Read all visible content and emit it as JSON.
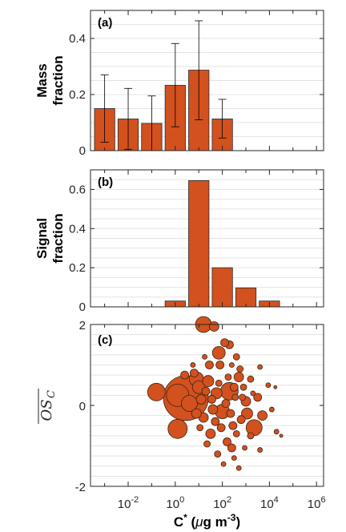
{
  "colors": {
    "bar_fill": "#d2511f",
    "bubble_fill": "#d2511f",
    "grid": "#e3e3e3"
  },
  "chart_data": [
    {
      "type": "bar",
      "panel_label": "(a)",
      "ylabel_lines": [
        "Mass",
        "fraction"
      ],
      "x_log10": [
        -3,
        -2,
        -1,
        0,
        1,
        2,
        3,
        4,
        5,
        6
      ],
      "values": [
        0.15,
        0.113,
        0.097,
        0.233,
        0.287,
        0.113,
        0,
        0,
        0,
        0
      ],
      "err_low": [
        0.03,
        0.005,
        0.0,
        0.085,
        0.11,
        0.045,
        0,
        0,
        0,
        0
      ],
      "err_high": [
        0.27,
        0.222,
        0.195,
        0.382,
        0.463,
        0.183,
        0,
        0,
        0,
        0
      ],
      "ylim": [
        0,
        0.5
      ],
      "yticks": [
        "0",
        "0.2",
        "0.4"
      ],
      "grid": true
    },
    {
      "type": "bar",
      "panel_label": "(b)",
      "ylabel_lines": [
        "Signal",
        "fraction"
      ],
      "x_log10": [
        -3,
        -2,
        -1,
        0,
        1,
        2,
        3,
        4,
        5,
        6
      ],
      "values": [
        0,
        0,
        0,
        0.03,
        0.645,
        0.2,
        0.097,
        0.03,
        0,
        0
      ],
      "ylim": [
        0,
        0.7
      ],
      "yticks": [
        "0",
        "0.2",
        "0.4",
        "0.6"
      ],
      "grid": true
    },
    {
      "type": "scatter",
      "panel_label": "(c)",
      "ylabel": "OSc",
      "ylim": [
        -2,
        2
      ],
      "yticks": [
        "2",
        "0",
        "-2"
      ],
      "grid": true,
      "xlim_log10": [
        -3.6,
        6.3
      ],
      "xticks": [
        {
          "base": "10",
          "exp": "-2"
        },
        {
          "base": "10",
          "exp": "0"
        },
        {
          "base": "10",
          "exp": "2"
        },
        {
          "base": "10",
          "exp": "4"
        },
        {
          "base": "10",
          "exp": "6"
        }
      ],
      "xlabel": {
        "main": "C",
        "sup": "*",
        "units_open": " (",
        "mu": "μ",
        "units_mid": "g m",
        "units_sup": "-3",
        "units_close": ")"
      },
      "points": [
        {
          "logx": 0.45,
          "y": 0.18,
          "s": 28
        },
        {
          "logx": 0.1,
          "y": 0.25,
          "s": 14
        },
        {
          "logx": -0.8,
          "y": 0.33,
          "s": 11
        },
        {
          "logx": 0.1,
          "y": -0.58,
          "s": 12
        },
        {
          "logx": 0.6,
          "y": 0.05,
          "s": 10
        },
        {
          "logx": 0.9,
          "y": 0.65,
          "s": 9
        },
        {
          "logx": 1.2,
          "y": 2.0,
          "s": 10
        },
        {
          "logx": 1.65,
          "y": 1.95,
          "s": 6
        },
        {
          "logx": 2.3,
          "y": 0.35,
          "s": 11
        },
        {
          "logx": 1.85,
          "y": 1.3,
          "s": 8
        },
        {
          "logx": 3.35,
          "y": -0.55,
          "s": 10
        },
        {
          "logx": 2.7,
          "y": 0.7,
          "s": 6
        },
        {
          "logx": 1.4,
          "y": 0.6,
          "s": 7
        },
        {
          "logx": 1.0,
          "y": 0.45,
          "s": 8
        },
        {
          "logx": 2.0,
          "y": -0.15,
          "s": 9
        },
        {
          "logx": 1.75,
          "y": 0.3,
          "s": 7
        },
        {
          "logx": 3.0,
          "y": 0.1,
          "s": 6
        },
        {
          "logx": 3.05,
          "y": -0.2,
          "s": 7
        },
        {
          "logx": 1.2,
          "y": -0.3,
          "s": 6
        },
        {
          "logx": 0.8,
          "y": 0.8,
          "s": 5
        },
        {
          "logx": 1.45,
          "y": 1.0,
          "s": 5
        },
        {
          "logx": 1.9,
          "y": 1.0,
          "s": 5
        },
        {
          "logx": 2.3,
          "y": 1.5,
          "s": 5
        },
        {
          "logx": 2.1,
          "y": 1.55,
          "s": 5
        },
        {
          "logx": 0.4,
          "y": 0.75,
          "s": 5
        },
        {
          "logx": 2.6,
          "y": 1.2,
          "s": 4
        },
        {
          "logx": 2.75,
          "y": 0.9,
          "s": 4
        },
        {
          "logx": 3.5,
          "y": 0.2,
          "s": 5
        },
        {
          "logx": 3.7,
          "y": -0.25,
          "s": 6
        },
        {
          "logx": 2.2,
          "y": -0.9,
          "s": 5
        },
        {
          "logx": 2.4,
          "y": -1.05,
          "s": 5
        },
        {
          "logx": 1.8,
          "y": -1.2,
          "s": 4
        },
        {
          "logx": 1.5,
          "y": -0.7,
          "s": 6
        },
        {
          "logx": 0.9,
          "y": -0.2,
          "s": 6
        },
        {
          "logx": 1.1,
          "y": 0.15,
          "s": 6
        },
        {
          "logx": 1.6,
          "y": -0.1,
          "s": 6
        },
        {
          "logx": 2.5,
          "y": 0.45,
          "s": 5
        },
        {
          "logx": 2.9,
          "y": 0.45,
          "s": 4
        },
        {
          "logx": 3.2,
          "y": 0.65,
          "s": 4
        },
        {
          "logx": 2.8,
          "y": -0.35,
          "s": 5
        },
        {
          "logx": 2.45,
          "y": -0.5,
          "s": 5
        },
        {
          "logx": 1.3,
          "y": 0.35,
          "s": 5
        },
        {
          "logx": 1.55,
          "y": 0.15,
          "s": 5
        },
        {
          "logx": 2.15,
          "y": 0.05,
          "s": 5
        },
        {
          "logx": 2.35,
          "y": -0.2,
          "s": 5
        },
        {
          "logx": 1.95,
          "y": -0.55,
          "s": 5
        },
        {
          "logx": 1.7,
          "y": -0.4,
          "s": 5
        },
        {
          "logx": 2.6,
          "y": -0.7,
          "s": 4
        },
        {
          "logx": 3.2,
          "y": -0.75,
          "s": 4
        },
        {
          "logx": 3.6,
          "y": -1.1,
          "s": 3
        },
        {
          "logx": 4.3,
          "y": -0.65,
          "s": 3
        },
        {
          "logx": 4.25,
          "y": 0.45,
          "s": 2
        },
        {
          "logx": 4.1,
          "y": -0.1,
          "s": 3
        },
        {
          "logx": 4.5,
          "y": -0.75,
          "s": 2
        },
        {
          "logx": 3.95,
          "y": 0.5,
          "s": 3
        },
        {
          "logx": 2.7,
          "y": -1.55,
          "s": 3
        },
        {
          "logx": 2.05,
          "y": -1.45,
          "s": 3
        },
        {
          "logx": 2.5,
          "y": -1.3,
          "s": 3
        },
        {
          "logx": 3.6,
          "y": 0.95,
          "s": 3
        },
        {
          "logx": 0.75,
          "y": 1.0,
          "s": 3
        },
        {
          "logx": 1.25,
          "y": 1.2,
          "s": 3
        },
        {
          "logx": 2.55,
          "y": 0.2,
          "s": 4
        },
        {
          "logx": 2.25,
          "y": 0.7,
          "s": 4
        },
        {
          "logx": 1.05,
          "y": -0.55,
          "s": 4
        },
        {
          "logx": 1.35,
          "y": -0.95,
          "s": 4
        },
        {
          "logx": 2.85,
          "y": 0.2,
          "s": 4
        },
        {
          "logx": 3.3,
          "y": 0.3,
          "s": 3
        },
        {
          "logx": 2.95,
          "y": -1.05,
          "s": 3
        },
        {
          "logx": 1.85,
          "y": 0.55,
          "s": 4
        },
        {
          "logx": 2.4,
          "y": 1.0,
          "s": 3
        }
      ]
    }
  ]
}
